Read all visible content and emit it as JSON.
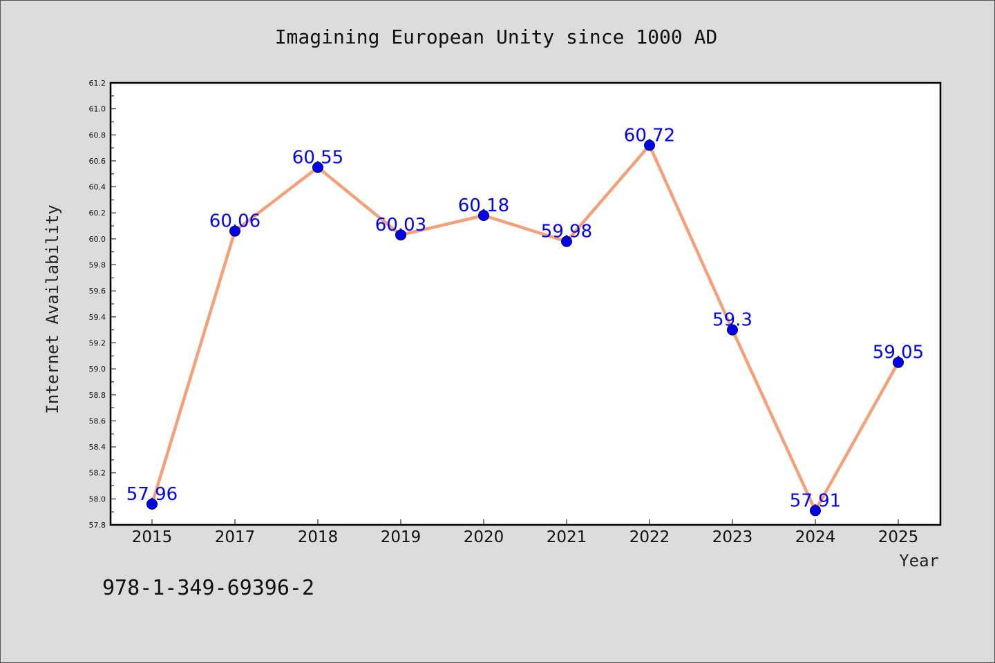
{
  "chart_data": {
    "type": "line",
    "title": "Imagining European Unity since 1000 AD",
    "xlabel": "Year",
    "ylabel": "Internet Availability",
    "categories": [
      "2015",
      "2017",
      "2018",
      "2019",
      "2020",
      "2021",
      "2022",
      "2023",
      "2024",
      "2025"
    ],
    "values": [
      57.96,
      60.06,
      60.55,
      60.03,
      60.18,
      59.98,
      60.72,
      59.3,
      57.91,
      59.05
    ],
    "data_labels": [
      "57.96",
      "60.06",
      "60.55",
      "60.03",
      "60.18",
      "59.98",
      "60.72",
      "59.3",
      "57.91",
      "59.05"
    ],
    "ylim": [
      57.8,
      61.2
    ],
    "yticks": [
      "57.8",
      "58.0",
      "58.2",
      "58.4",
      "58.6",
      "58.8",
      "59.0",
      "59.2",
      "59.4",
      "59.6",
      "59.8",
      "60.0",
      "60.2",
      "60.4",
      "60.6",
      "60.8",
      "61.0",
      "61.2"
    ],
    "grid": false,
    "line_color": "#f4a07a",
    "marker_color": "#0000ee",
    "label_color": "#0000ee"
  },
  "footer": {
    "isbn": "978-1-349-69396-2"
  }
}
